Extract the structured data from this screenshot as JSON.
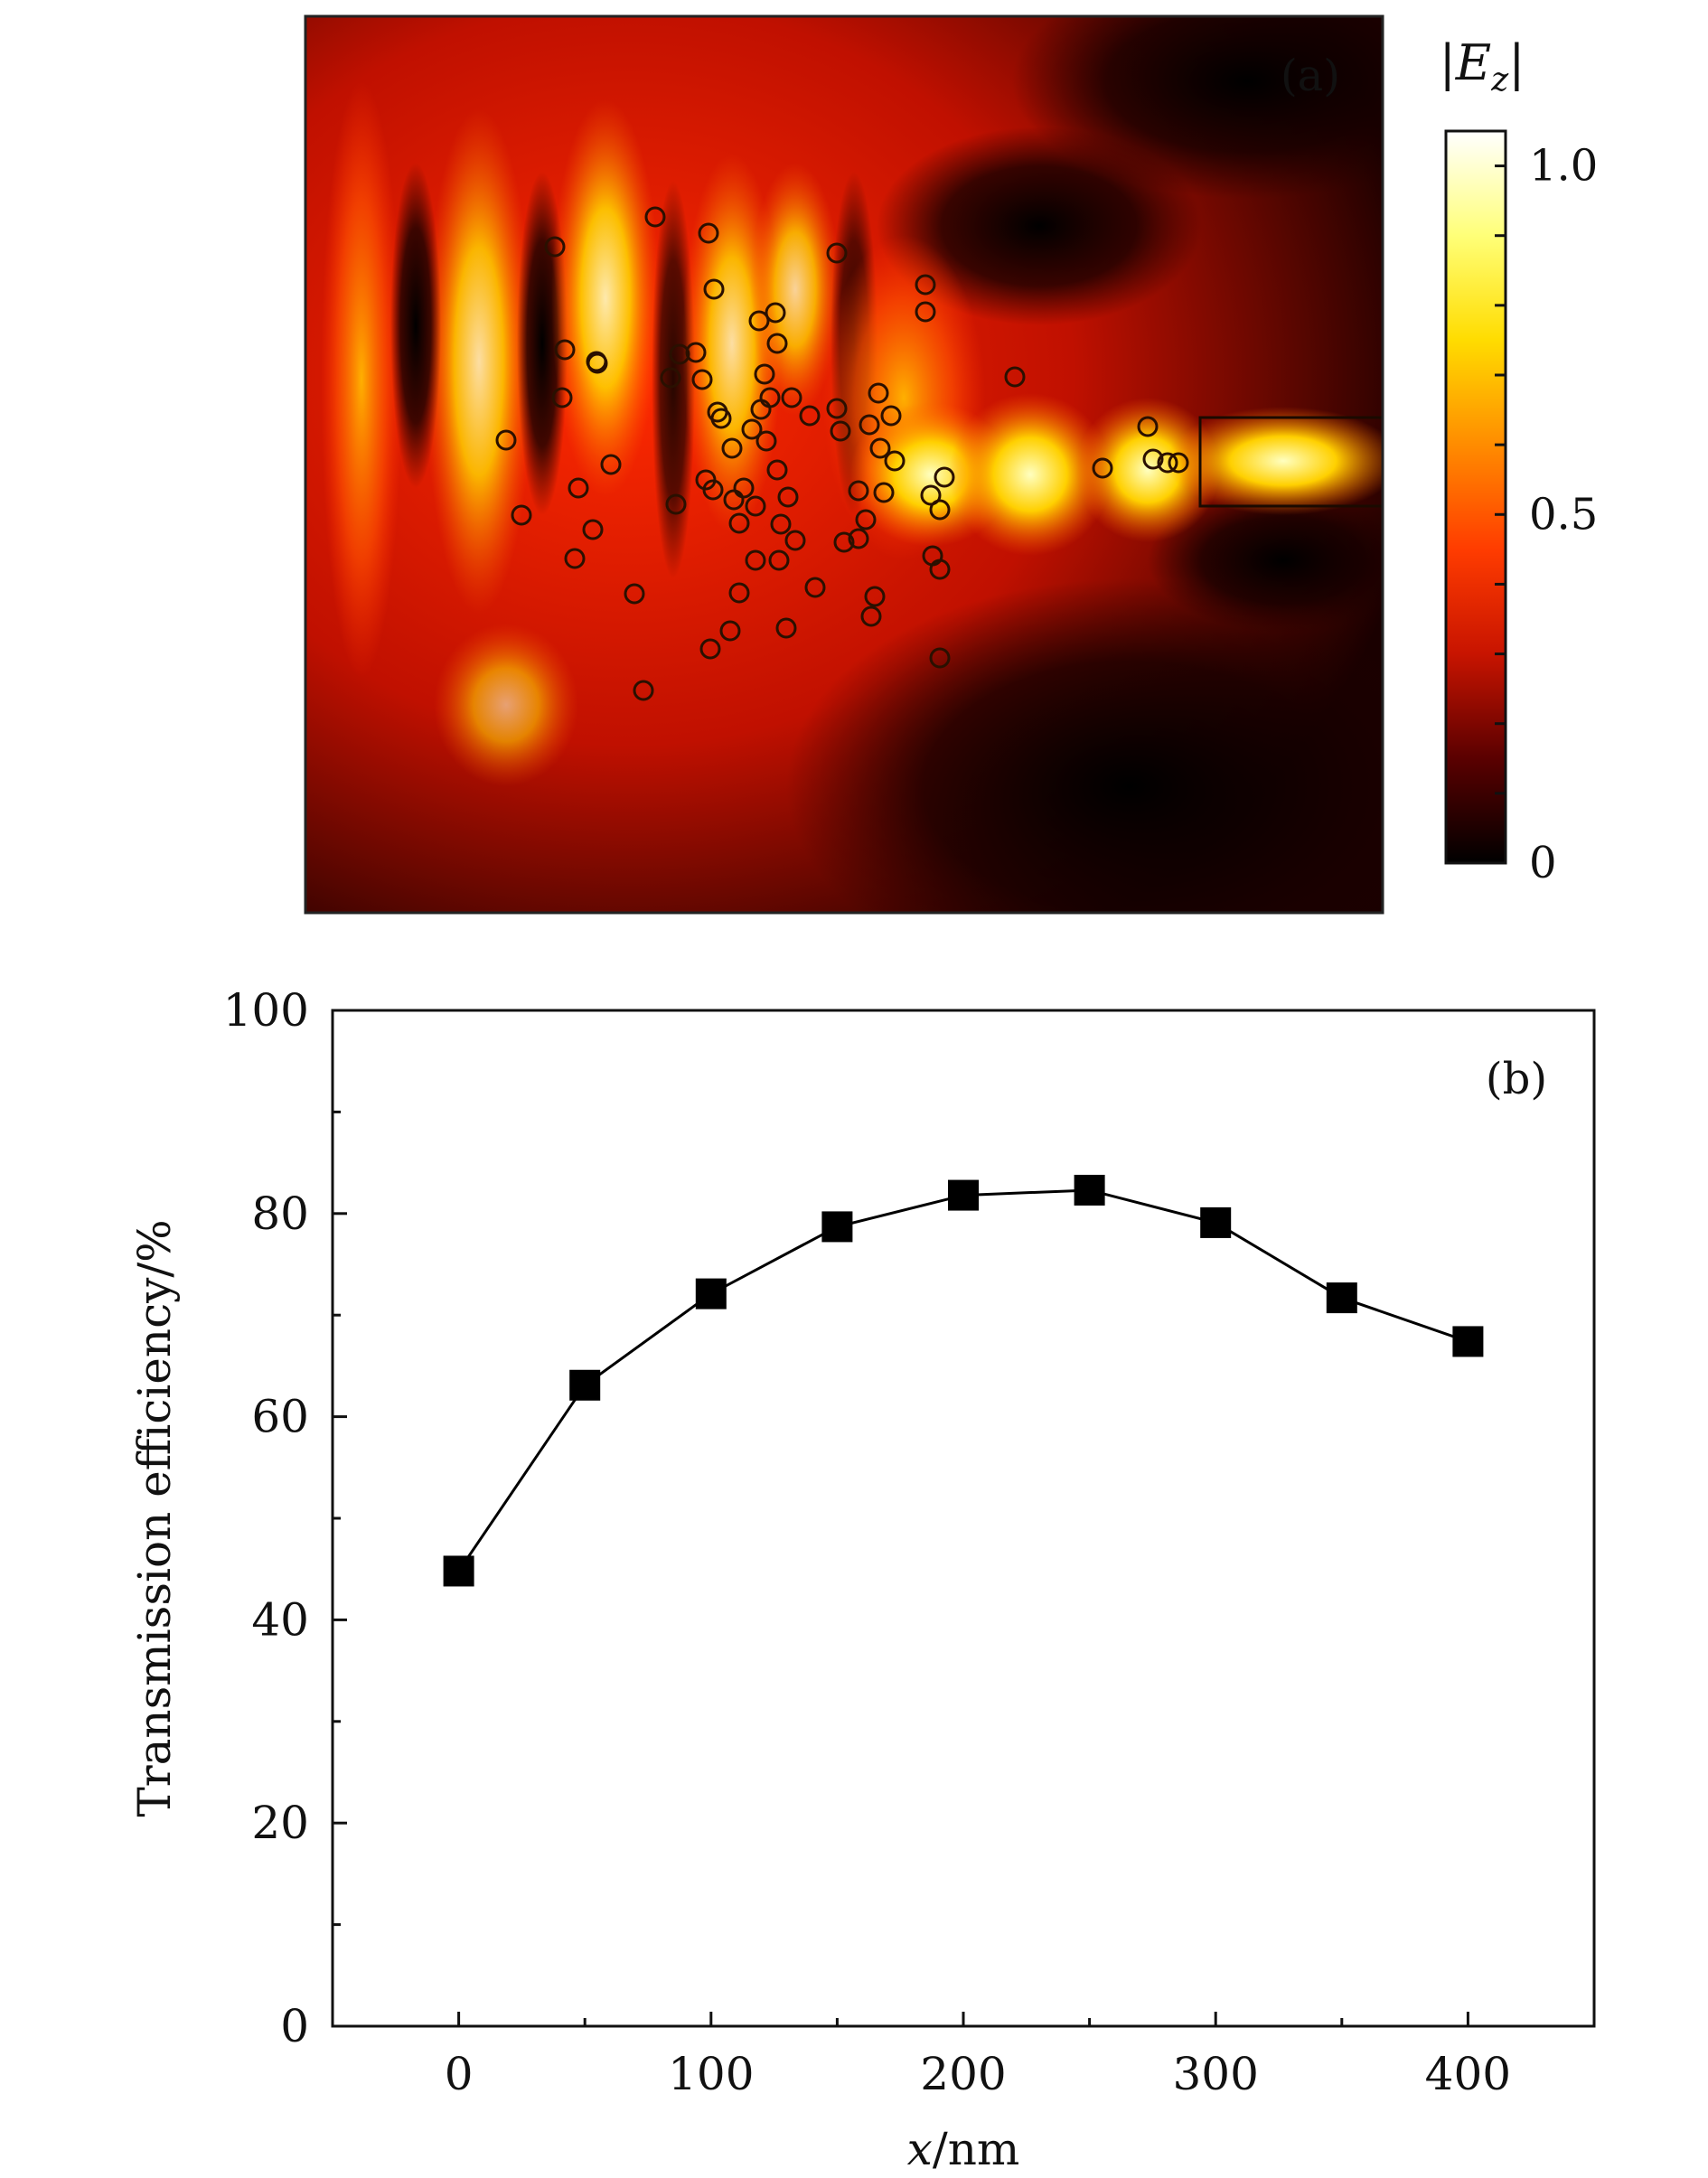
{
  "panel_a": {
    "label": "(a)",
    "colorbar": {
      "title_prefix": "|",
      "title_var": "E",
      "title_sub": "z",
      "title_suffix": "|",
      "ticks": [
        "1.0",
        "0.5",
        "0"
      ],
      "tick_values": [
        1.0,
        0.5,
        0
      ],
      "range": [
        0,
        1.05
      ],
      "colors": [
        "#000000",
        "#5a0000",
        "#c81400",
        "#ff3c00",
        "#ff8c00",
        "#ffdc00",
        "#ffff78",
        "#ffffff"
      ]
    }
  },
  "chart_data": {
    "type": "line",
    "label": "(b)",
    "title": "",
    "xlabel_var": "x",
    "xlabel_unit": "/nm",
    "ylabel": "Transmission efficiency/%",
    "x": [
      0,
      50,
      100,
      150,
      200,
      250,
      300,
      350,
      400
    ],
    "series": [
      {
        "name": "Transmission efficiency",
        "values": [
          44.8,
          63.1,
          72.1,
          78.7,
          81.8,
          82.3,
          79.1,
          71.7,
          67.4
        ]
      }
    ],
    "xlim": [
      -50,
      450
    ],
    "ylim": [
      0,
      100
    ],
    "xticks": [
      "0",
      "100",
      "200",
      "300",
      "400"
    ],
    "xtick_values": [
      0,
      100,
      200,
      300,
      400
    ],
    "yticks": [
      "0",
      "20",
      "40",
      "60",
      "80",
      "100"
    ],
    "ytick_values": [
      0,
      20,
      40,
      60,
      80,
      100
    ],
    "marker": "square",
    "color": "#000000"
  }
}
